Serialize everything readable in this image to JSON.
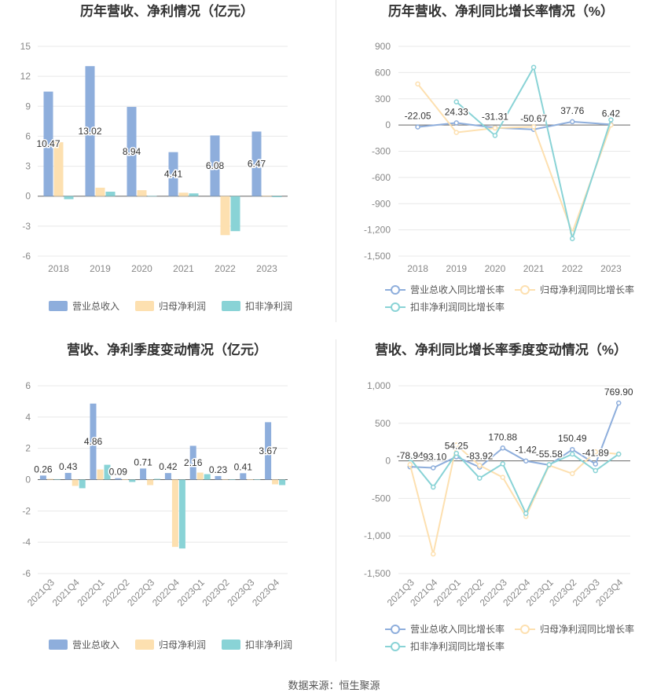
{
  "source_label": "数据来源：恒生聚源",
  "colors": {
    "revenue": "#8eaedc",
    "net_profit": "#fde0b0",
    "deducted_profit": "#89d3d6",
    "grid": "#e8e8e8",
    "axis_text": "#888888",
    "title": "#333333",
    "zero_line": "#666666"
  },
  "chart_data": [
    {
      "id": "annual_bars",
      "type": "bar",
      "title": "历年营收、净利情况（亿元）",
      "categories": [
        "2018",
        "2019",
        "2020",
        "2021",
        "2022",
        "2023"
      ],
      "ylim": [
        -6,
        15
      ],
      "yticks": [
        -6,
        -3,
        0,
        3,
        6,
        9,
        12,
        15
      ],
      "grid": true,
      "legend_position": "bottom",
      "series": [
        {
          "name": "营业总收入",
          "values": [
            10.47,
            13.02,
            8.94,
            4.41,
            6.08,
            6.47
          ]
        },
        {
          "name": "归母净利润",
          "values": [
            5.4,
            0.85,
            0.6,
            0.35,
            -3.9,
            0.05
          ]
        },
        {
          "name": "扣非净利润",
          "values": [
            -0.3,
            0.45,
            0.02,
            0.28,
            -3.5,
            -0.1
          ]
        }
      ],
      "data_labels": [
        "10.47",
        "13.02",
        "8.94",
        "4.41",
        "6.08",
        "6.47"
      ]
    },
    {
      "id": "annual_growth",
      "type": "line",
      "title": "历年营收、净利同比增长率情况（%）",
      "categories": [
        "2018",
        "2019",
        "2020",
        "2021",
        "2022",
        "2023"
      ],
      "ylim": [
        -1500,
        900
      ],
      "yticks": [
        -1500,
        -1200,
        -900,
        -600,
        -300,
        0,
        300,
        600,
        900
      ],
      "ytick_labels": [
        "-1,500",
        "-1,200",
        "-900",
        "-600",
        "-300",
        "0",
        "300",
        "600",
        "900"
      ],
      "grid": true,
      "legend_position": "bottom",
      "series": [
        {
          "name": "营业总收入同比增长率",
          "values": [
            -22.05,
            24.33,
            -31.31,
            -50.67,
            37.76,
            6.42
          ]
        },
        {
          "name": "归母净利润同比增长率",
          "values": [
            470,
            -85,
            -35,
            -20,
            -1230,
            0
          ]
        },
        {
          "name": "扣非净利润同比增长率",
          "values": [
            null,
            265,
            -120,
            660,
            -1300,
            60
          ]
        }
      ],
      "data_labels": [
        "-22.05",
        "24.33",
        "-31.31",
        "-50.67",
        "37.76",
        "6.42"
      ]
    },
    {
      "id": "quarterly_bars",
      "type": "bar",
      "title": "营收、净利季度变动情况（亿元）",
      "categories": [
        "2021Q3",
        "2021Q4",
        "2022Q1",
        "2022Q2",
        "2022Q3",
        "2022Q4",
        "2023Q1",
        "2023Q2",
        "2023Q3",
        "2023Q4"
      ],
      "ylim": [
        -6,
        6
      ],
      "yticks": [
        -6,
        -4,
        -2,
        0,
        2,
        4,
        6
      ],
      "grid": true,
      "legend_position": "bottom",
      "series": [
        {
          "name": "营业总收入",
          "values": [
            0.26,
            0.43,
            4.86,
            0.09,
            0.71,
            0.42,
            2.16,
            0.23,
            0.41,
            3.67
          ]
        },
        {
          "name": "归母净利润",
          "values": [
            0.05,
            -0.4,
            0.65,
            0.02,
            -0.35,
            -4.3,
            0.45,
            0.03,
            0.02,
            -0.3
          ]
        },
        {
          "name": "扣非净利润",
          "values": [
            0.03,
            -0.55,
            0.95,
            -0.15,
            0.05,
            -4.4,
            0.35,
            0.02,
            0.01,
            -0.35
          ]
        }
      ],
      "data_labels": [
        "0.26",
        "0.43",
        "4.86",
        "0.09",
        "0.71",
        "0.42",
        "2.16",
        "0.23",
        "0.41",
        "3.67"
      ]
    },
    {
      "id": "quarterly_growth",
      "type": "line",
      "title": "营收、净利同比增长率季度变动情况（%）",
      "categories": [
        "2021Q3",
        "2021Q4",
        "2022Q1",
        "2022Q2",
        "2022Q3",
        "2022Q4",
        "2023Q1",
        "2023Q2",
        "2023Q3",
        "2023Q4"
      ],
      "ylim": [
        -1500,
        1000
      ],
      "yticks": [
        -1500,
        -1000,
        -500,
        0,
        500,
        1000
      ],
      "ytick_labels": [
        "-1,500",
        "-1,000",
        "-500",
        "0",
        "500",
        "1,000"
      ],
      "grid": true,
      "legend_position": "bottom",
      "series": [
        {
          "name": "营业总收入同比增长率",
          "values": [
            -78.94,
            -93.1,
            54.25,
            -83.92,
            170.88,
            -1.42,
            -55.58,
            150.49,
            -41.89,
            769.9
          ]
        },
        {
          "name": "归母净利润同比增长率",
          "values": [
            -50,
            -1240,
            210,
            -60,
            -220,
            -740,
            -60,
            -170,
            120,
            90
          ]
        },
        {
          "name": "扣非净利润同比增长率",
          "values": [
            30,
            -350,
            100,
            -230,
            -40,
            -700,
            -50,
            90,
            -130,
            90
          ]
        }
      ],
      "data_labels": [
        "-78.94",
        "-93.10",
        "54.25",
        "-83.92",
        "170.88",
        "-1.42",
        "-55.58",
        "150.49",
        "-41.89",
        "769.90"
      ]
    }
  ]
}
